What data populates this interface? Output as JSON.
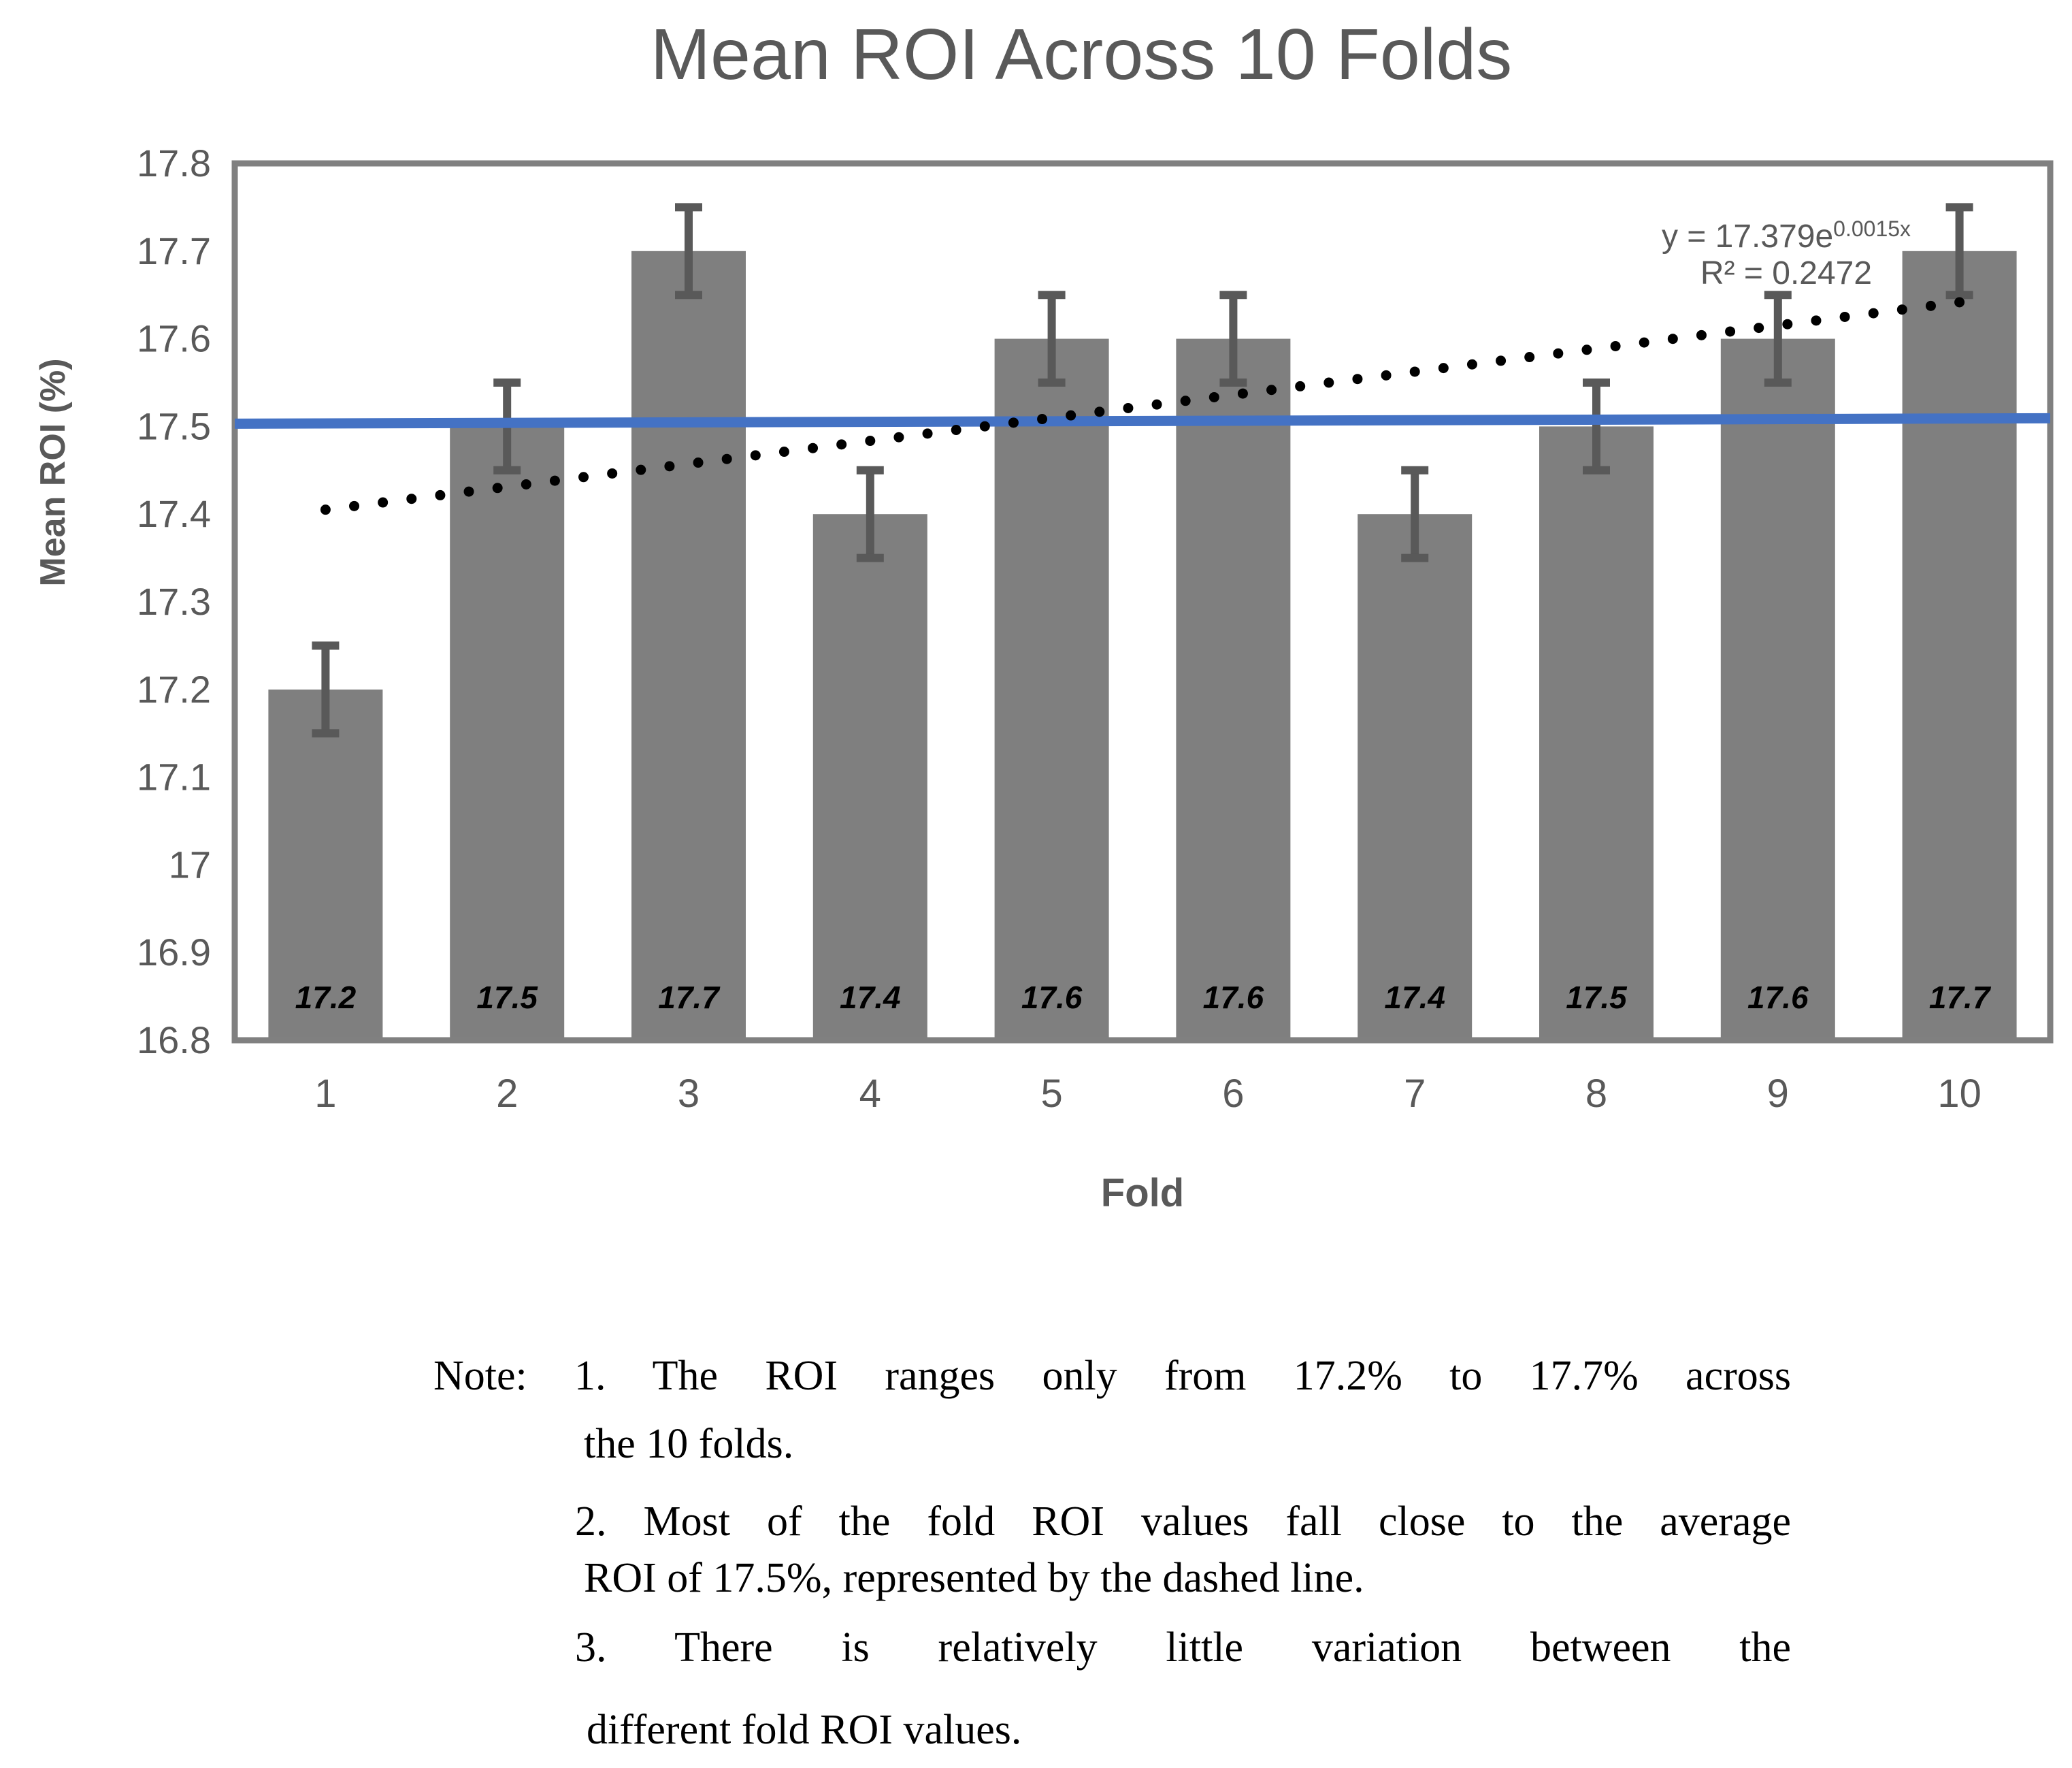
{
  "chart_data": {
    "type": "bar",
    "title": "Mean ROI Across 10 Folds",
    "xlabel": "Fold",
    "ylabel": "Mean ROI (%)",
    "categories": [
      "1",
      "2",
      "3",
      "4",
      "5",
      "6",
      "7",
      "8",
      "9",
      "10"
    ],
    "values": [
      17.2,
      17.5,
      17.7,
      17.4,
      17.6,
      17.6,
      17.4,
      17.5,
      17.6,
      17.7
    ],
    "data_labels": [
      "17.2",
      "17.5",
      "17.7",
      "17.4",
      "17.6",
      "17.6",
      "17.4",
      "17.5",
      "17.6",
      "17.7"
    ],
    "error_bar": 0.05,
    "ylim": [
      16.8,
      17.8
    ],
    "yticks": [
      "17.8",
      "17.7",
      "17.6",
      "17.5",
      "17.4",
      "17.3",
      "17.2",
      "17.1",
      "17",
      "16.9",
      "16.8"
    ],
    "grid": false,
    "legend": false,
    "average_line": {
      "value": 17.5,
      "color": "#4472C4"
    },
    "trendline": {
      "type": "exponential",
      "a": 17.379,
      "b": 0.0015,
      "eq_base": "y = 17.379e",
      "eq_exp": "0.0015x",
      "r2_label": "R² = 0.2472",
      "color": "#000000",
      "style": "dotted"
    },
    "bar_color": "#7F7F7F",
    "error_color": "#595959",
    "axis_color": "#808080",
    "text_color": "#595959",
    "label_color": "#000000"
  },
  "note": {
    "lines": [
      "Note: 1. The ROI ranges only from 17.2% to 17.7% across",
      "the 10 folds.",
      "2. Most of the fold ROI values fall close to the average",
      "ROI of 17.5%, represented by the dashed line.",
      "3. There is relatively little variation between the",
      "different fold ROI values."
    ]
  }
}
